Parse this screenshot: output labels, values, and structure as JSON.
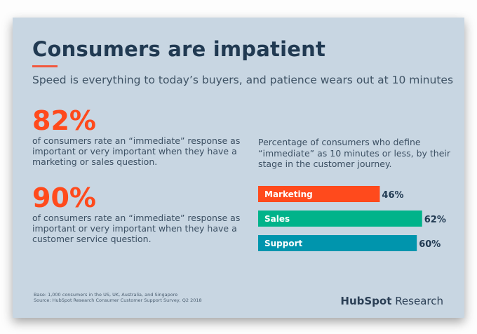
{
  "title": "Consumers are impatient",
  "subtitle": "Speed is everything to today’s buyers, and patience wears out at 10 minutes",
  "stats": [
    {
      "value": "82%",
      "text": "of consumers rate an “immediate” response as important or very important when they have a marketing or sales question."
    },
    {
      "value": "90%",
      "text": "of consumers rate an “immediate” response as important or very important when they have a customer service question."
    }
  ],
  "chart_description": "Percentage of consumers who define “immediate” as 10 minutes or less, by their stage in the customer journey.",
  "footer": {
    "base": "Base: 1,000 consumers in the US, UK, Australia, and Singapore",
    "source": "Source: HubSpot Research Consumer Customer Support Survey, Q2 2018"
  },
  "logo": {
    "brand": "HubSpot",
    "suffix": "Research"
  },
  "colors": {
    "accent": "#ff4a1c",
    "title": "#213a52",
    "background": "#c8d6e2"
  },
  "chart_data": {
    "type": "bar",
    "orientation": "horizontal",
    "categories": [
      "Marketing",
      "Sales",
      "Support"
    ],
    "values": [
      46,
      62,
      60
    ],
    "value_labels": [
      "46%",
      "62%",
      "60%"
    ],
    "colors": [
      "#ff4a1c",
      "#00b38a",
      "#0095ad"
    ],
    "xlim": [
      0,
      100
    ],
    "grid": false
  }
}
